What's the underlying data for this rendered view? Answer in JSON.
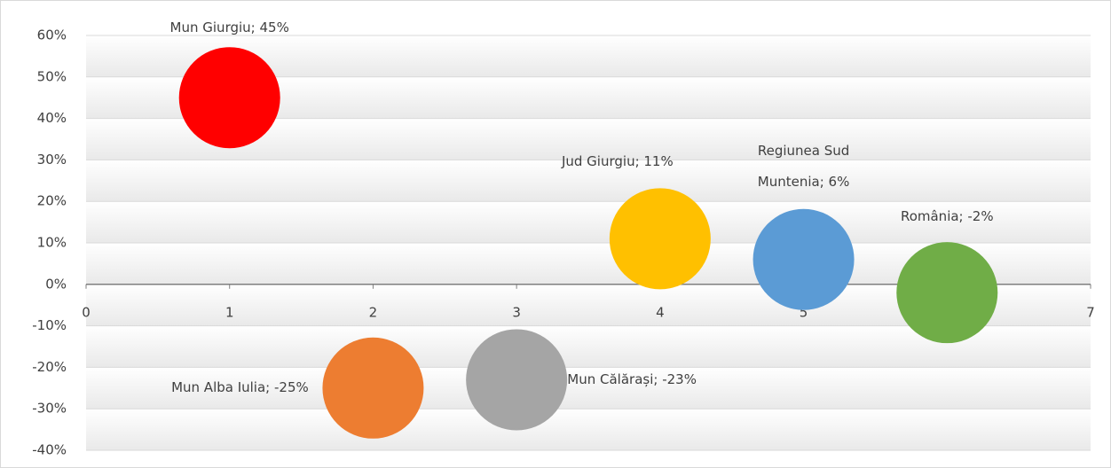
{
  "chart_data": {
    "type": "bubble",
    "x": [
      1,
      2,
      3,
      4,
      5,
      6
    ],
    "values": [
      45,
      -25,
      -23,
      11,
      6,
      -2
    ],
    "value_labels": [
      "Mun Giurgiu; 45%",
      "Mun Alba Iulia; -25%",
      "Mun Călărași; -23%",
      "Jud Giurgiu; 11%",
      "Regiunea Sud Muntenia; 6%",
      "România; -2%"
    ],
    "colors": [
      "#ff0000",
      "#ed7d31",
      "#a5a5a5",
      "#ffc000",
      "#5b9bd5",
      "#70ad47"
    ],
    "xlim": [
      0,
      7
    ],
    "xticks": [
      0,
      1,
      2,
      3,
      4,
      5,
      6,
      7
    ],
    "ylim": [
      -40,
      60
    ],
    "yticks": [
      {
        "value": -40,
        "label": "-40%"
      },
      {
        "value": -30,
        "label": "-30%"
      },
      {
        "value": -20,
        "label": "-20%"
      },
      {
        "value": -10,
        "label": "-10%"
      },
      {
        "value": 0,
        "label": "0%"
      },
      {
        "value": 10,
        "label": "10%"
      },
      {
        "value": 20,
        "label": "20%"
      },
      {
        "value": 30,
        "label": "30%"
      },
      {
        "value": 40,
        "label": "40%"
      },
      {
        "value": 50,
        "label": "50%"
      },
      {
        "value": 60,
        "label": "60%"
      }
    ],
    "grid": true
  }
}
